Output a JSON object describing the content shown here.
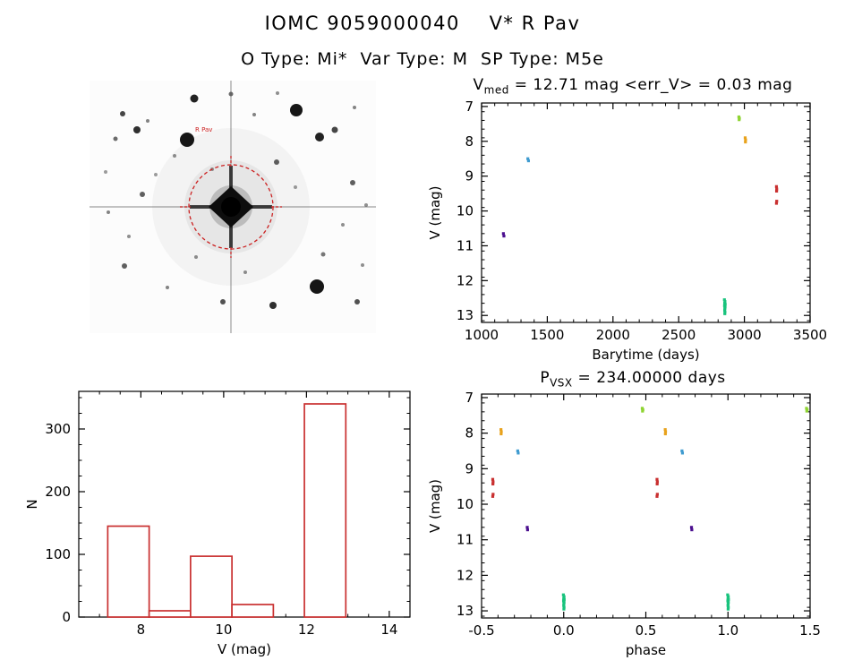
{
  "header": {
    "title": "IOMC 9059000040    V* R Pav",
    "subtitle": "O Type: Mi*  Var Type: M  SP Type: M5e"
  },
  "finding_chart": {
    "label": "R Pav",
    "aperture_color": "#cc2222",
    "stars": [
      [
        37,
        37,
        3,
        0.75
      ],
      [
        53,
        55,
        4,
        0.85
      ],
      [
        29,
        65,
        2.5,
        0.6
      ],
      [
        65,
        45,
        2,
        0.5
      ],
      [
        117,
        20,
        4.5,
        0.9
      ],
      [
        158,
        15,
        2.5,
        0.6
      ],
      [
        184,
        38,
        2,
        0.5
      ],
      [
        210,
        14,
        2,
        0.45
      ],
      [
        109,
        66,
        8,
        0.95
      ],
      [
        95,
        84,
        2,
        0.45
      ],
      [
        137,
        99,
        2,
        0.4
      ],
      [
        231,
        33,
        7,
        0.95
      ],
      [
        257,
        63,
        5,
        0.9
      ],
      [
        274,
        55,
        3.5,
        0.75
      ],
      [
        296,
        30,
        2,
        0.5
      ],
      [
        209,
        91,
        3,
        0.65
      ],
      [
        294,
        114,
        3,
        0.65
      ],
      [
        309,
        139,
        2,
        0.45
      ],
      [
        230,
        119,
        2,
        0.4
      ],
      [
        59,
        127,
        3,
        0.65
      ],
      [
        21,
        147,
        2,
        0.5
      ],
      [
        44,
        174,
        2,
        0.45
      ],
      [
        283,
        161,
        2,
        0.45
      ],
      [
        261,
        194,
        2.5,
        0.55
      ],
      [
        305,
        206,
        2,
        0.45
      ],
      [
        39,
        207,
        3,
        0.65
      ],
      [
        87,
        231,
        2,
        0.5
      ],
      [
        119,
        197,
        2,
        0.45
      ],
      [
        149,
        247,
        3,
        0.7
      ],
      [
        205,
        251,
        4,
        0.85
      ],
      [
        254,
        230,
        8,
        0.95
      ],
      [
        299,
        247,
        3,
        0.7
      ],
      [
        174,
        214,
        2,
        0.45
      ],
      [
        74,
        105,
        2,
        0.4
      ],
      [
        18,
        102,
        2,
        0.4
      ]
    ]
  },
  "lightcurve": {
    "title_prefix": "V",
    "title_sub": "med",
    "title_rest": " = 12.71 mag <err_V> = 0.03 mag"
  },
  "phase": {
    "title_prefix": "P",
    "title_sub": "VSX",
    "title_rest": " = 234.00000 days"
  },
  "chart_data": [
    {
      "id": "lightcurve",
      "type": "scatter",
      "title": "V_med = 12.71 mag <err_V> = 0.03 mag",
      "xlabel": "Barytime (days)",
      "ylabel": "V (mag)",
      "xlim": [
        1000,
        3500
      ],
      "ylim": [
        6.9,
        13.2
      ],
      "invert_y": true,
      "xticks": [
        1000,
        1500,
        2000,
        2500,
        3000,
        3500
      ],
      "xtick_labels": [
        "1000",
        "1500",
        "2000",
        "2500",
        "3000",
        "3500"
      ],
      "xminor": 100,
      "yticks": [
        7,
        8,
        9,
        10,
        11,
        12,
        13
      ],
      "ytick_labels": [
        "7",
        "8",
        "9",
        "10",
        "11",
        "12",
        "13"
      ],
      "yminor": 0.25,
      "series": [
        {
          "name": "epoch-1-purple",
          "color": "#4b0f8f",
          "points": [
            [
              1166,
              10.65
            ],
            [
              1170,
              10.72
            ]
          ]
        },
        {
          "name": "epoch-2-blue",
          "color": "#3f9bd0",
          "points": [
            [
              1352,
              8.5
            ],
            [
              1357,
              8.56
            ]
          ]
        },
        {
          "name": "epoch-3-green",
          "color": "#19c37d",
          "points": [
            [
              2848,
              12.55
            ],
            [
              2852,
              12.6
            ],
            [
              2850,
              12.65
            ],
            [
              2854,
              12.68
            ],
            [
              2849,
              12.72
            ],
            [
              2853,
              12.76
            ],
            [
              2851,
              12.8
            ],
            [
              2850,
              12.85
            ],
            [
              2852,
              12.9
            ],
            [
              2851,
              12.95
            ]
          ]
        },
        {
          "name": "epoch-4-yellowgreen",
          "color": "#8fd433",
          "points": [
            [
              2958,
              7.3
            ],
            [
              2962,
              7.34
            ],
            [
              2960,
              7.38
            ]
          ]
        },
        {
          "name": "epoch-5-orange",
          "color": "#e8a21c",
          "points": [
            [
              3006,
              7.9
            ],
            [
              3009,
              7.96
            ],
            [
              3008,
              8.02
            ]
          ]
        },
        {
          "name": "epoch-6-red",
          "color": "#c93030",
          "points": [
            [
              3244,
              9.3
            ],
            [
              3246,
              9.37
            ],
            [
              3245,
              9.43
            ],
            [
              3246,
              9.72
            ],
            [
              3244,
              9.78
            ]
          ]
        }
      ]
    },
    {
      "id": "histogram",
      "type": "bar",
      "title": "",
      "xlabel": "V (mag)",
      "ylabel": "N",
      "color": "#c93030",
      "xlim": [
        6.5,
        14.5
      ],
      "ylim": [
        0,
        360
      ],
      "invert_y": false,
      "xticks": [
        8,
        10,
        12,
        14
      ],
      "xtick_labels": [
        "8",
        "10",
        "12",
        "14"
      ],
      "xminor": 0.5,
      "yticks": [
        0,
        100,
        200,
        300
      ],
      "ytick_labels": [
        "0",
        "100",
        "200",
        "300"
      ],
      "yminor": 25,
      "bars": [
        {
          "x0": 7.2,
          "x1": 8.2,
          "n": 145
        },
        {
          "x0": 8.2,
          "x1": 9.2,
          "n": 10
        },
        {
          "x0": 9.2,
          "x1": 10.2,
          "n": 97
        },
        {
          "x0": 10.2,
          "x1": 11.2,
          "n": 20
        },
        {
          "x0": 11.95,
          "x1": 12.95,
          "n": 340
        }
      ]
    },
    {
      "id": "phase",
      "type": "scatter",
      "title": "P_VSX = 234.00000 days",
      "xlabel": "phase",
      "ylabel": "V (mag)",
      "xlim": [
        -0.5,
        1.5
      ],
      "ylim": [
        6.9,
        13.2
      ],
      "invert_y": true,
      "xticks": [
        -0.5,
        0,
        0.5,
        1,
        1.5
      ],
      "xtick_labels": [
        "-0.5",
        "0.0",
        "0.5",
        "1.0",
        "1.5"
      ],
      "xminor": 0.1,
      "yticks": [
        7,
        8,
        9,
        10,
        11,
        12,
        13
      ],
      "ytick_labels": [
        "7",
        "8",
        "9",
        "10",
        "11",
        "12",
        "13"
      ],
      "yminor": 0.25,
      "series": [
        {
          "name": "epoch-6-red",
          "color": "#c93030",
          "points": [
            [
              -0.432,
              9.3
            ],
            [
              -0.43,
              9.37
            ],
            [
              -0.431,
              9.43
            ],
            [
              -0.43,
              9.72
            ],
            [
              -0.432,
              9.78
            ],
            [
              0.568,
              9.3
            ],
            [
              0.57,
              9.37
            ],
            [
              0.569,
              9.43
            ],
            [
              0.57,
              9.72
            ],
            [
              0.568,
              9.78
            ]
          ]
        },
        {
          "name": "epoch-5-orange",
          "color": "#e8a21c",
          "points": [
            [
              -0.382,
              7.9
            ],
            [
              -0.38,
              7.96
            ],
            [
              -0.381,
              8.02
            ],
            [
              0.618,
              7.9
            ],
            [
              0.62,
              7.96
            ],
            [
              0.619,
              8.02
            ]
          ]
        },
        {
          "name": "epoch-2-blue",
          "color": "#3f9bd0",
          "points": [
            [
              -0.28,
              8.5
            ],
            [
              -0.277,
              8.56
            ],
            [
              0.72,
              8.5
            ],
            [
              0.723,
              8.56
            ]
          ]
        },
        {
          "name": "epoch-1-purple",
          "color": "#4b0f8f",
          "points": [
            [
              -0.222,
              10.65
            ],
            [
              -0.22,
              10.72
            ],
            [
              0.778,
              10.65
            ],
            [
              0.78,
              10.72
            ]
          ]
        },
        {
          "name": "epoch-3-green",
          "color": "#19c37d",
          "points": [
            [
              -0.002,
              12.55
            ],
            [
              0.002,
              12.6
            ],
            [
              0,
              12.65
            ],
            [
              0.003,
              12.68
            ],
            [
              -0.001,
              12.72
            ],
            [
              0.002,
              12.76
            ],
            [
              0.001,
              12.8
            ],
            [
              0,
              12.85
            ],
            [
              0.002,
              12.9
            ],
            [
              0.001,
              12.95
            ],
            [
              0.998,
              12.55
            ],
            [
              1.002,
              12.6
            ],
            [
              1,
              12.65
            ],
            [
              1.003,
              12.68
            ],
            [
              0.999,
              12.72
            ],
            [
              1.002,
              12.76
            ],
            [
              1.001,
              12.8
            ],
            [
              1,
              12.85
            ],
            [
              1.002,
              12.9
            ],
            [
              1.001,
              12.95
            ]
          ]
        },
        {
          "name": "epoch-4-yellowgreen",
          "color": "#8fd433",
          "points": [
            [
              0.478,
              7.3
            ],
            [
              0.482,
              7.34
            ],
            [
              0.48,
              7.38
            ],
            [
              1.478,
              7.3
            ],
            [
              1.482,
              7.34
            ],
            [
              1.48,
              7.38
            ]
          ]
        }
      ]
    }
  ]
}
